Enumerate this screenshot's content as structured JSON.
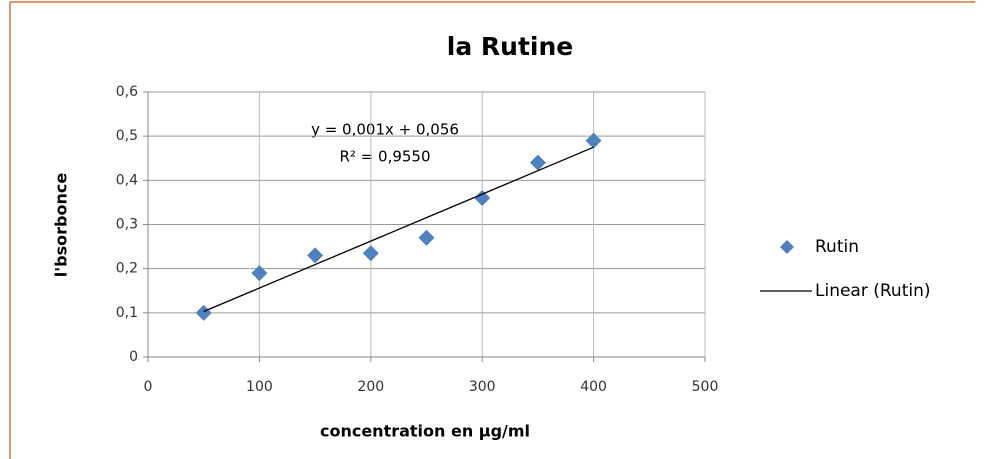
{
  "chart_data": {
    "type": "scatter",
    "title": "la Rutine",
    "xlabel": "concentration en µg/ml",
    "ylabel": "l'bsorbonce",
    "annotations": [
      "y = 0,001x + 0,056",
      "R² = 0,9550"
    ],
    "x": [
      50,
      100,
      150,
      200,
      250,
      300,
      350,
      400
    ],
    "series": [
      {
        "name": "Rutin",
        "color": "#4f81bd",
        "marker": "diamond",
        "values": [
          0.1,
          0.19,
          0.23,
          0.235,
          0.27,
          0.36,
          0.44,
          0.49
        ]
      },
      {
        "name": "Linear (Rutin)",
        "color": "#000000",
        "marker": "line",
        "x": [
          50,
          400
        ],
        "values": [
          0.103,
          0.475
        ]
      }
    ],
    "xlim": [
      0,
      500
    ],
    "xticks": [
      0,
      100,
      200,
      300,
      400,
      500
    ],
    "ylim": [
      0,
      0.6
    ],
    "yticks": [
      0,
      {
        "value": 0.1,
        "label": "0,1"
      },
      {
        "value": 0.2,
        "label": "0,2"
      },
      {
        "value": 0.3,
        "label": "0,3"
      },
      {
        "value": 0.4,
        "label": "0,4"
      },
      {
        "value": 0.5,
        "label": "0,5"
      },
      {
        "value": 0.6,
        "label": "0,6"
      }
    ],
    "grid": true,
    "legend": "right"
  }
}
